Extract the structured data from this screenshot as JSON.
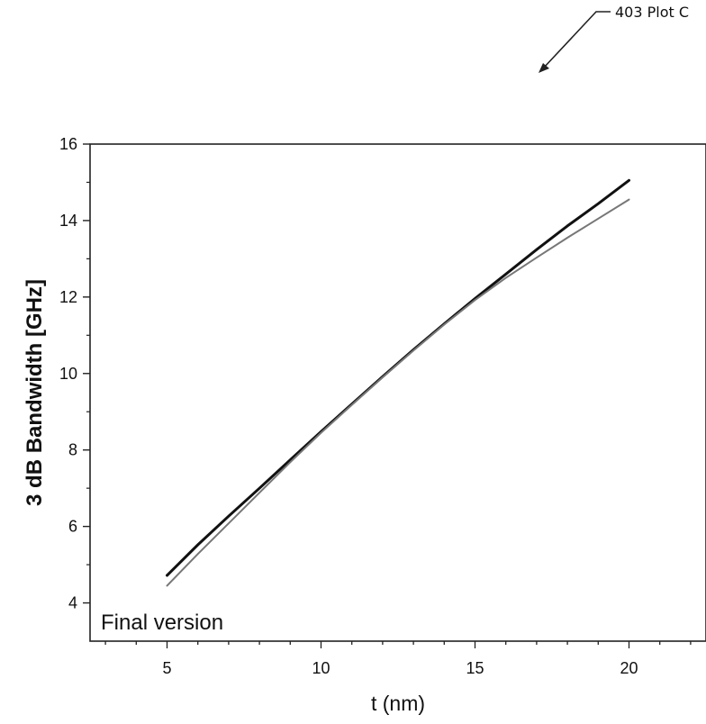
{
  "callout": {
    "label": "403 Plot C"
  },
  "chart_data": {
    "type": "line",
    "title": "",
    "xlabel": "t (nm)",
    "ylabel": "3 dB Bandwidth [GHz]",
    "xlim": [
      2.5,
      22.5
    ],
    "ylim": [
      3,
      16
    ],
    "x_ticks": [
      5,
      10,
      15,
      20
    ],
    "y_ticks": [
      4,
      6,
      8,
      10,
      12,
      14,
      16
    ],
    "annotation": "Final version",
    "grid": false,
    "series": [
      {
        "color": "#111111",
        "x": [
          5,
          6,
          7,
          8,
          9,
          10,
          11,
          12,
          13,
          14,
          15,
          16,
          17,
          18,
          19,
          20
        ],
        "values": [
          4.72,
          5.52,
          6.27,
          7.0,
          7.74,
          8.48,
          9.2,
          9.92,
          10.62,
          11.3,
          11.96,
          12.6,
          13.24,
          13.86,
          14.44,
          15.05
        ]
      },
      {
        "color": "#777777",
        "x": [
          5,
          6,
          7,
          8,
          9,
          10,
          11,
          12,
          13,
          14,
          15,
          16,
          17,
          18,
          19,
          20
        ],
        "values": [
          4.45,
          5.28,
          6.08,
          6.88,
          7.68,
          8.45,
          9.18,
          9.9,
          10.6,
          11.28,
          11.92,
          12.5,
          13.03,
          13.55,
          14.05,
          14.55
        ]
      }
    ]
  }
}
